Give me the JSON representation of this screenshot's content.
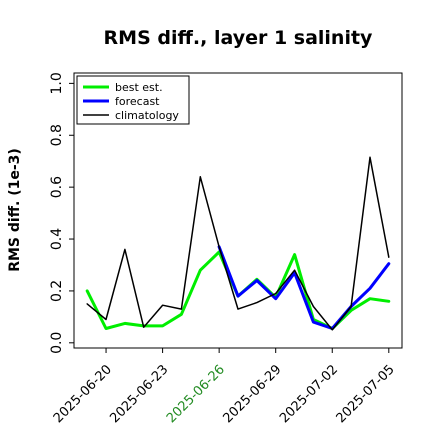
{
  "chart_data": {
    "type": "line",
    "title": "RMS diff., layer 1 salinity",
    "xlabel": "",
    "ylabel": "RMS diff. (1e-3)",
    "ylim": [
      -0.02,
      1.04
    ],
    "yticks": [
      0.0,
      0.2,
      0.4,
      0.6,
      0.8,
      1.0
    ],
    "ytick_labels": [
      "0.0",
      "0.2",
      "0.4",
      "0.6",
      "0.8",
      "1.0"
    ],
    "xticks": [
      "2025-06-20",
      "2025-06-23",
      "2025-06-26",
      "2025-06-29",
      "2025-07-02",
      "2025-07-05"
    ],
    "xtick_highlight": "2025-06-26",
    "xtick_highlight_color": "#228b22",
    "grid": false,
    "legend_position": "top-left",
    "series": [
      {
        "name": "best est.",
        "color": "#00ee00",
        "linewidth": 3,
        "points": [
          {
            "x": "2025-06-19",
            "y": 0.2
          },
          {
            "x": "2025-06-20",
            "y": 0.055
          },
          {
            "x": "2025-06-21",
            "y": 0.075
          },
          {
            "x": "2025-06-22",
            "y": 0.065
          },
          {
            "x": "2025-06-23",
            "y": 0.065
          },
          {
            "x": "2025-06-24",
            "y": 0.11
          },
          {
            "x": "2025-06-25",
            "y": 0.28
          },
          {
            "x": "2025-06-26",
            "y": 0.35
          },
          {
            "x": "2025-06-27",
            "y": 0.18
          },
          {
            "x": "2025-06-28",
            "y": 0.245
          },
          {
            "x": "2025-06-29",
            "y": 0.175
          },
          {
            "x": "2025-06-30",
            "y": 0.34
          },
          {
            "x": "2025-07-01",
            "y": 0.09
          },
          {
            "x": "2025-07-02",
            "y": 0.055
          },
          {
            "x": "2025-07-03",
            "y": 0.125
          },
          {
            "x": "2025-07-04",
            "y": 0.17
          },
          {
            "x": "2025-07-05",
            "y": 0.16
          }
        ]
      },
      {
        "name": "forecast",
        "color": "#0000ff",
        "linewidth": 3,
        "points": [
          {
            "x": "2025-06-26",
            "y": 0.37
          },
          {
            "x": "2025-06-27",
            "y": 0.18
          },
          {
            "x": "2025-06-28",
            "y": 0.24
          },
          {
            "x": "2025-06-29",
            "y": 0.17
          },
          {
            "x": "2025-06-30",
            "y": 0.27
          },
          {
            "x": "2025-07-01",
            "y": 0.08
          },
          {
            "x": "2025-07-02",
            "y": 0.055
          },
          {
            "x": "2025-07-03",
            "y": 0.14
          },
          {
            "x": "2025-07-04",
            "y": 0.21
          },
          {
            "x": "2025-07-05",
            "y": 0.305
          }
        ]
      },
      {
        "name": "climatology",
        "color": "#000000",
        "linewidth": 1.5,
        "points": [
          {
            "x": "2025-06-19",
            "y": 0.15
          },
          {
            "x": "2025-06-20",
            "y": 0.09
          },
          {
            "x": "2025-06-21",
            "y": 0.36
          },
          {
            "x": "2025-06-22",
            "y": 0.06
          },
          {
            "x": "2025-06-23",
            "y": 0.145
          },
          {
            "x": "2025-06-24",
            "y": 0.13
          },
          {
            "x": "2025-06-25",
            "y": 0.64
          },
          {
            "x": "2025-06-26",
            "y": 0.37
          },
          {
            "x": "2025-06-27",
            "y": 0.13
          },
          {
            "x": "2025-06-28",
            "y": 0.155
          },
          {
            "x": "2025-06-29",
            "y": 0.19
          },
          {
            "x": "2025-06-30",
            "y": 0.28
          },
          {
            "x": "2025-07-01",
            "y": 0.14
          },
          {
            "x": "2025-07-02",
            "y": 0.05
          },
          {
            "x": "2025-07-03",
            "y": 0.14
          },
          {
            "x": "2025-07-04",
            "y": 0.715
          },
          {
            "x": "2025-07-05",
            "y": 0.33
          }
        ]
      }
    ]
  }
}
